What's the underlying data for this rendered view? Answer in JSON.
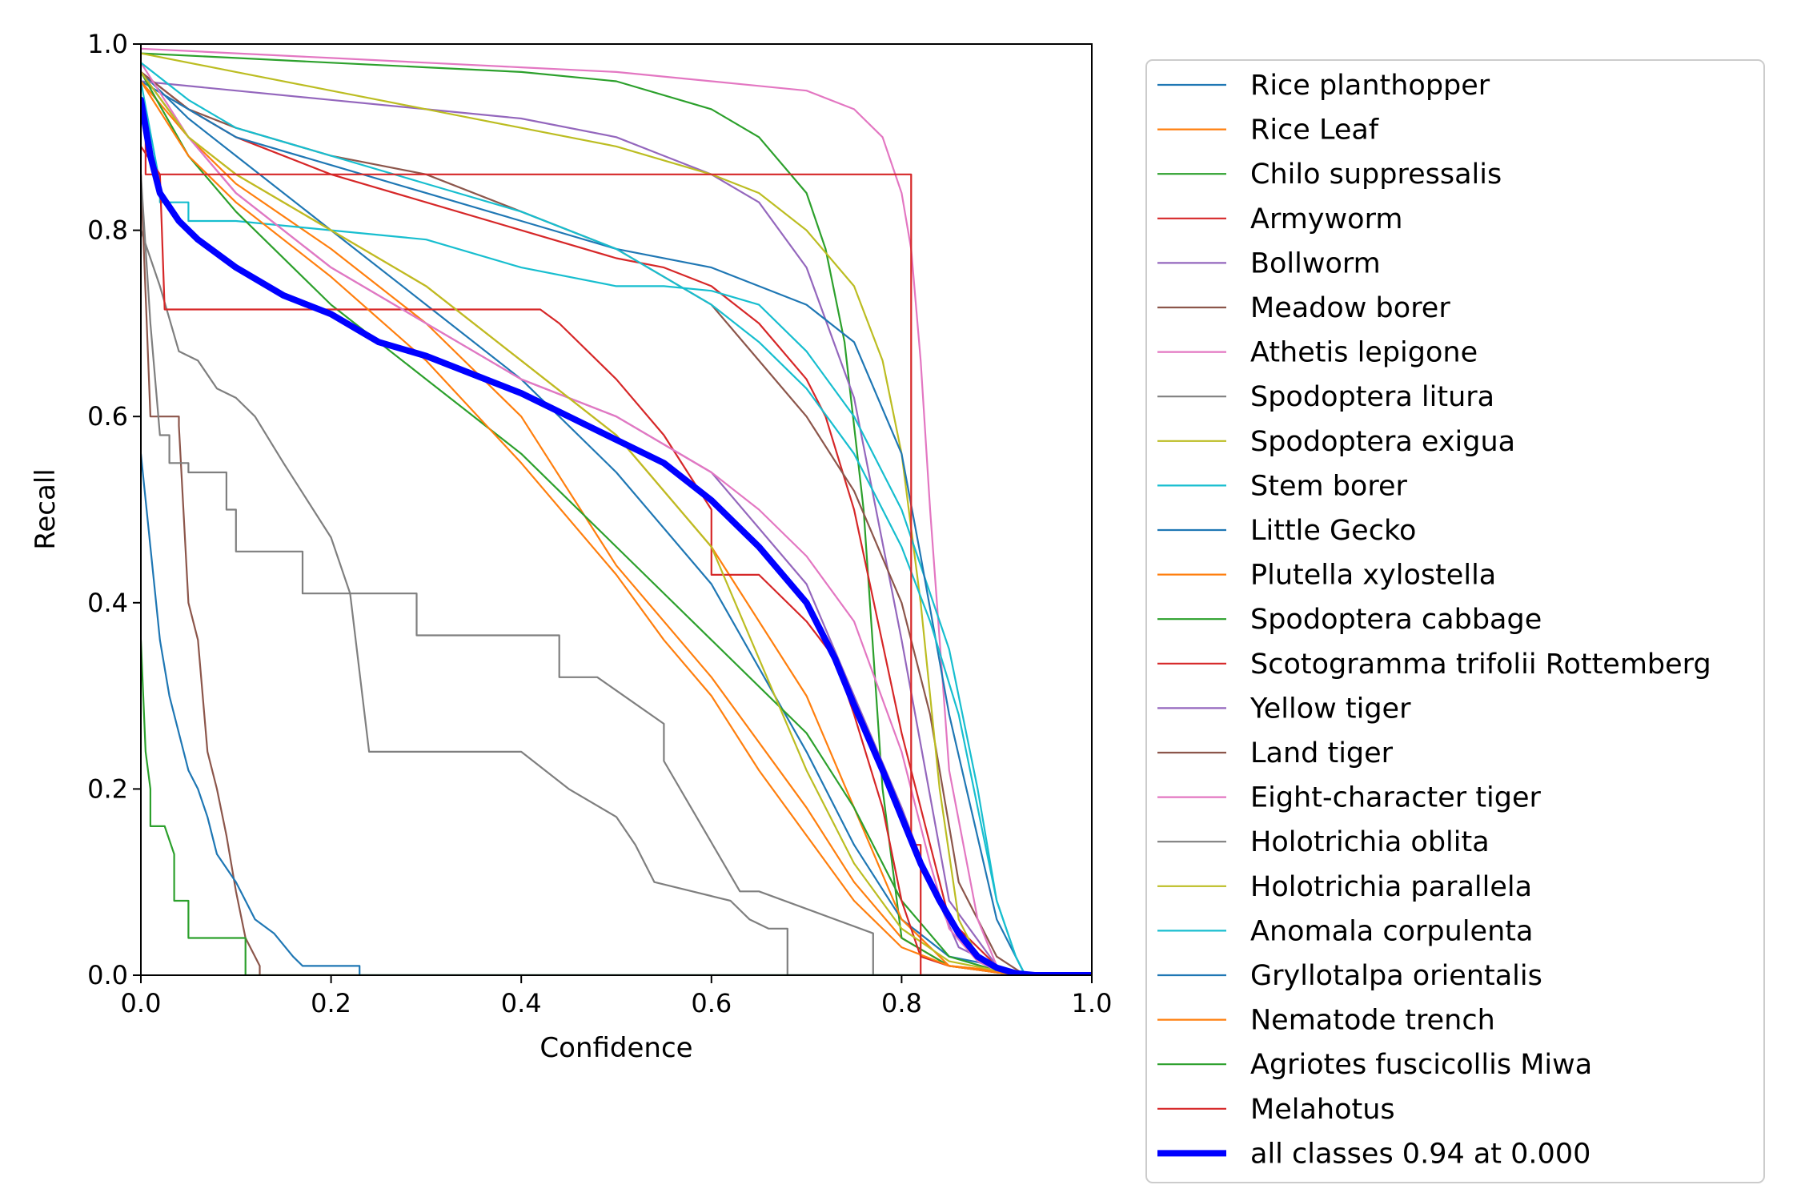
{
  "chart_data": {
    "type": "line",
    "title": "",
    "xlabel": "Confidence",
    "ylabel": "Recall",
    "xlim": [
      0,
      1
    ],
    "ylim": [
      0,
      1
    ],
    "xticks": [
      "0.0",
      "0.2",
      "0.4",
      "0.6",
      "0.8",
      "1.0"
    ],
    "yticks": [
      "0.0",
      "0.2",
      "0.4",
      "0.6",
      "0.8",
      "1.0"
    ],
    "grid": false,
    "legend_position": "outside-right",
    "series": [
      {
        "name": "Rice planthopper",
        "color": "#1f77b4",
        "x": [
          0,
          0.05,
          0.1,
          0.2,
          0.3,
          0.4,
          0.5,
          0.6,
          0.7,
          0.75,
          0.8,
          0.85,
          0.9,
          0.93,
          1.0
        ],
        "y": [
          0.97,
          0.92,
          0.88,
          0.8,
          0.72,
          0.64,
          0.54,
          0.42,
          0.24,
          0.14,
          0.06,
          0.02,
          0.01,
          0,
          0
        ]
      },
      {
        "name": "Rice Leaf",
        "color": "#ff7f0e",
        "x": [
          0,
          0.05,
          0.1,
          0.2,
          0.3,
          0.4,
          0.5,
          0.6,
          0.7,
          0.75,
          0.8,
          0.85,
          0.9,
          0.93,
          1.0
        ],
        "y": [
          0.97,
          0.9,
          0.85,
          0.78,
          0.7,
          0.6,
          0.44,
          0.32,
          0.18,
          0.1,
          0.04,
          0.01,
          0.005,
          0,
          0
        ]
      },
      {
        "name": "Chilo suppressalis",
        "color": "#2ca02c",
        "x": [
          0,
          0.1,
          0.2,
          0.3,
          0.4,
          0.5,
          0.6,
          0.65,
          0.7,
          0.72,
          0.74,
          0.76,
          0.78,
          0.8,
          0.85,
          0.9,
          0.93,
          1.0
        ],
        "y": [
          0.99,
          0.985,
          0.98,
          0.975,
          0.97,
          0.96,
          0.93,
          0.9,
          0.84,
          0.78,
          0.68,
          0.5,
          0.2,
          0.04,
          0.01,
          0.003,
          0,
          0
        ]
      },
      {
        "name": "Armyworm",
        "color": "#d62728",
        "x": [
          0,
          0.05,
          0.1,
          0.2,
          0.3,
          0.4,
          0.5,
          0.55,
          0.6,
          0.65,
          0.7,
          0.72,
          0.75,
          0.8,
          0.85,
          0.9,
          0.93,
          1.0
        ],
        "y": [
          0.97,
          0.93,
          0.9,
          0.86,
          0.83,
          0.8,
          0.77,
          0.76,
          0.74,
          0.7,
          0.64,
          0.6,
          0.5,
          0.26,
          0.06,
          0.01,
          0,
          0
        ]
      },
      {
        "name": "Bollworm",
        "color": "#9467bd",
        "x": [
          0,
          0.1,
          0.2,
          0.3,
          0.4,
          0.5,
          0.55,
          0.6,
          0.65,
          0.7,
          0.75,
          0.8,
          0.85,
          0.9,
          0.93,
          1.0
        ],
        "y": [
          0.96,
          0.95,
          0.94,
          0.93,
          0.92,
          0.9,
          0.88,
          0.86,
          0.83,
          0.76,
          0.62,
          0.36,
          0.08,
          0.01,
          0,
          0
        ]
      },
      {
        "name": "Meadow borer",
        "color": "#8c564b",
        "x": [
          0,
          0.05,
          0.1,
          0.2,
          0.3,
          0.4,
          0.5,
          0.6,
          0.65,
          0.7,
          0.75,
          0.8,
          0.83,
          0.86,
          0.9,
          0.93,
          1.0
        ],
        "y": [
          0.97,
          0.93,
          0.91,
          0.88,
          0.86,
          0.82,
          0.78,
          0.72,
          0.66,
          0.6,
          0.52,
          0.4,
          0.28,
          0.1,
          0.02,
          0,
          0
        ]
      },
      {
        "name": "Athetis lepigone",
        "color": "#e377c2",
        "x": [
          0,
          0.1,
          0.2,
          0.3,
          0.4,
          0.5,
          0.6,
          0.65,
          0.7,
          0.75,
          0.78,
          0.8,
          0.81,
          0.82,
          0.83,
          0.85,
          0.88,
          0.9,
          0.93,
          1.0
        ],
        "y": [
          0.995,
          0.99,
          0.985,
          0.98,
          0.975,
          0.97,
          0.96,
          0.955,
          0.95,
          0.93,
          0.9,
          0.84,
          0.78,
          0.66,
          0.5,
          0.22,
          0.06,
          0.01,
          0,
          0
        ]
      },
      {
        "name": "Spodoptera litura",
        "color": "#7f7f7f",
        "x": [
          0,
          0.02,
          0.04,
          0.06,
          0.08,
          0.1,
          0.12,
          0.15,
          0.2,
          0.22,
          0.24,
          0.3,
          0.4,
          0.45,
          0.5,
          0.52,
          0.54,
          0.58,
          0.62,
          0.64,
          0.66,
          0.68,
          0.68,
          1.0
        ],
        "y": [
          0.8,
          0.74,
          0.67,
          0.66,
          0.63,
          0.62,
          0.6,
          0.55,
          0.47,
          0.41,
          0.24,
          0.24,
          0.24,
          0.2,
          0.17,
          0.14,
          0.1,
          0.09,
          0.08,
          0.06,
          0.05,
          0.05,
          0,
          0
        ]
      },
      {
        "name": "Spodoptera exigua",
        "color": "#bcbd22",
        "x": [
          0,
          0.1,
          0.2,
          0.3,
          0.4,
          0.5,
          0.6,
          0.65,
          0.7,
          0.75,
          0.78,
          0.8,
          0.82,
          0.84,
          0.86,
          0.88,
          0.9,
          0.93,
          1.0
        ],
        "y": [
          0.99,
          0.97,
          0.95,
          0.93,
          0.91,
          0.89,
          0.86,
          0.84,
          0.8,
          0.74,
          0.66,
          0.56,
          0.4,
          0.2,
          0.06,
          0.02,
          0.01,
          0,
          0
        ]
      },
      {
        "name": "Stem borer",
        "color": "#17becf",
        "x": [
          0,
          0.02,
          0.02,
          0.05,
          0.05,
          0.1,
          0.2,
          0.3,
          0.4,
          0.5,
          0.55,
          0.6,
          0.65,
          0.7,
          0.75,
          0.8,
          0.85,
          0.88,
          0.9,
          0.92,
          0.93,
          1.0
        ],
        "y": [
          0.96,
          0.85,
          0.83,
          0.83,
          0.81,
          0.81,
          0.8,
          0.79,
          0.76,
          0.74,
          0.74,
          0.735,
          0.72,
          0.67,
          0.6,
          0.5,
          0.35,
          0.2,
          0.08,
          0.02,
          0,
          0
        ]
      },
      {
        "name": "Little Gecko",
        "color": "#1f77b4",
        "x": [
          0,
          0.05,
          0.1,
          0.2,
          0.3,
          0.4,
          0.5,
          0.6,
          0.65,
          0.7,
          0.75,
          0.8,
          0.82,
          0.85,
          0.9,
          0.93,
          1.0
        ],
        "y": [
          0.96,
          0.93,
          0.9,
          0.87,
          0.84,
          0.81,
          0.78,
          0.76,
          0.74,
          0.72,
          0.68,
          0.56,
          0.45,
          0.28,
          0.06,
          0,
          0
        ]
      },
      {
        "name": "Plutella xylostella",
        "color": "#ff7f0e",
        "x": [
          0,
          0.05,
          0.1,
          0.2,
          0.3,
          0.4,
          0.5,
          0.6,
          0.7,
          0.75,
          0.8,
          0.85,
          0.9,
          0.93,
          1.0
        ],
        "y": [
          0.96,
          0.9,
          0.86,
          0.8,
          0.74,
          0.66,
          0.58,
          0.46,
          0.3,
          0.18,
          0.06,
          0.01,
          0.005,
          0,
          0
        ]
      },
      {
        "name": "Spodoptera cabbage",
        "color": "#2ca02c",
        "x": [
          0,
          0.05,
          0.1,
          0.2,
          0.3,
          0.4,
          0.5,
          0.6,
          0.7,
          0.75,
          0.8,
          0.85,
          0.9,
          0.93,
          1.0
        ],
        "y": [
          0.97,
          0.88,
          0.82,
          0.72,
          0.64,
          0.56,
          0.46,
          0.36,
          0.26,
          0.18,
          0.08,
          0.02,
          0.005,
          0,
          0
        ]
      },
      {
        "name": "Scotogramma trifolii Rottemberg",
        "color": "#d62728",
        "x": [
          0,
          0.02,
          0.025,
          0.1,
          0.2,
          0.3,
          0.42,
          0.44,
          0.5,
          0.55,
          0.6,
          0.6,
          0.65,
          0.7,
          0.73,
          0.75,
          0.78,
          0.8,
          0.82,
          0.85,
          0.9,
          0.93,
          1.0
        ],
        "y": [
          0.89,
          0.86,
          0.715,
          0.715,
          0.715,
          0.715,
          0.715,
          0.7,
          0.64,
          0.58,
          0.5,
          0.43,
          0.43,
          0.38,
          0.34,
          0.28,
          0.18,
          0.08,
          0.02,
          0.01,
          0.003,
          0,
          0
        ]
      },
      {
        "name": "Yellow tiger",
        "color": "#9467bd",
        "x": [
          0,
          0.05,
          0.1,
          0.2,
          0.3,
          0.4,
          0.5,
          0.6,
          0.7,
          0.75,
          0.8,
          0.83,
          0.86,
          0.9,
          0.93,
          1.0
        ],
        "y": [
          0.97,
          0.9,
          0.84,
          0.76,
          0.7,
          0.64,
          0.6,
          0.54,
          0.42,
          0.3,
          0.18,
          0.1,
          0.03,
          0.01,
          0,
          0
        ]
      },
      {
        "name": "Land tiger",
        "color": "#8c564b",
        "x": [
          0,
          0.01,
          0.02,
          0.04,
          0.04,
          0.05,
          0.05,
          0.06,
          0.07,
          0.08,
          0.09,
          0.1,
          0.11,
          0.12,
          0.125,
          0.125,
          1.0
        ],
        "y": [
          0.86,
          0.6,
          0.6,
          0.6,
          0.59,
          0.4,
          0.4,
          0.36,
          0.24,
          0.2,
          0.15,
          0.09,
          0.04,
          0.02,
          0.01,
          0,
          0
        ]
      },
      {
        "name": "Eight-character tiger",
        "color": "#e377c2",
        "x": [
          0,
          0.05,
          0.1,
          0.2,
          0.3,
          0.4,
          0.5,
          0.6,
          0.65,
          0.7,
          0.75,
          0.8,
          0.83,
          0.85,
          0.88,
          0.9,
          0.93,
          1.0
        ],
        "y": [
          0.98,
          0.9,
          0.84,
          0.76,
          0.7,
          0.64,
          0.6,
          0.54,
          0.5,
          0.45,
          0.38,
          0.24,
          0.12,
          0.05,
          0.015,
          0.005,
          0,
          0
        ]
      },
      {
        "name": "Holotrichia oblita",
        "color": "#7f7f7f",
        "x": [
          0,
          0.01,
          0.02,
          0.03,
          0.03,
          0.05,
          0.05,
          0.09,
          0.09,
          0.1,
          0.1,
          0.12,
          0.12,
          0.17,
          0.17,
          0.25,
          0.25,
          0.29,
          0.29,
          0.44,
          0.44,
          0.48,
          0.48,
          0.55,
          0.55,
          0.63,
          0.65,
          0.77,
          0.77,
          1.0
        ],
        "y": [
          0.86,
          0.7,
          0.58,
          0.58,
          0.55,
          0.55,
          0.54,
          0.54,
          0.5,
          0.5,
          0.455,
          0.455,
          0.455,
          0.455,
          0.41,
          0.41,
          0.41,
          0.41,
          0.365,
          0.365,
          0.32,
          0.32,
          0.32,
          0.27,
          0.23,
          0.09,
          0.09,
          0.045,
          0,
          0
        ]
      },
      {
        "name": "Holotrichia parallela",
        "color": "#bcbd22",
        "x": [
          0,
          0.05,
          0.1,
          0.2,
          0.3,
          0.4,
          0.5,
          0.6,
          0.65,
          0.7,
          0.75,
          0.8,
          0.85,
          0.9,
          0.93,
          1.0
        ],
        "y": [
          0.97,
          0.9,
          0.86,
          0.8,
          0.74,
          0.66,
          0.58,
          0.46,
          0.34,
          0.22,
          0.12,
          0.05,
          0.015,
          0.005,
          0,
          0
        ]
      },
      {
        "name": "Anomala corpulenta",
        "color": "#17becf",
        "x": [
          0,
          0.05,
          0.1,
          0.2,
          0.3,
          0.4,
          0.5,
          0.6,
          0.65,
          0.7,
          0.75,
          0.8,
          0.83,
          0.86,
          0.88,
          0.9,
          0.92,
          0.93,
          1.0
        ],
        "y": [
          0.98,
          0.94,
          0.91,
          0.88,
          0.85,
          0.82,
          0.78,
          0.72,
          0.68,
          0.63,
          0.56,
          0.46,
          0.38,
          0.28,
          0.18,
          0.08,
          0.02,
          0,
          0
        ]
      },
      {
        "name": "Gryllotalpa orientalis",
        "color": "#1f77b4",
        "x": [
          0,
          0.01,
          0.02,
          0.03,
          0.04,
          0.05,
          0.06,
          0.07,
          0.08,
          0.1,
          0.12,
          0.14,
          0.16,
          0.17,
          0.2,
          0.23,
          0.23,
          1.0
        ],
        "y": [
          0.56,
          0.46,
          0.36,
          0.3,
          0.26,
          0.22,
          0.2,
          0.17,
          0.13,
          0.1,
          0.06,
          0.045,
          0.02,
          0.01,
          0.01,
          0.01,
          0,
          0
        ]
      },
      {
        "name": "Nematode trench",
        "color": "#ff7f0e",
        "x": [
          0,
          0.05,
          0.1,
          0.2,
          0.3,
          0.4,
          0.5,
          0.55,
          0.6,
          0.65,
          0.7,
          0.75,
          0.8,
          0.85,
          0.9,
          0.93,
          1.0
        ],
        "y": [
          0.96,
          0.88,
          0.83,
          0.75,
          0.66,
          0.55,
          0.43,
          0.36,
          0.3,
          0.22,
          0.15,
          0.08,
          0.03,
          0.01,
          0.003,
          0,
          0
        ]
      },
      {
        "name": "Agriotes fuscicollis Miwa",
        "color": "#2ca02c",
        "x": [
          0,
          0.005,
          0.01,
          0.01,
          0.025,
          0.035,
          0.035,
          0.05,
          0.05,
          0.08,
          0.09,
          0.11,
          0.11,
          1.0
        ],
        "y": [
          0.36,
          0.24,
          0.2,
          0.16,
          0.16,
          0.13,
          0.08,
          0.08,
          0.04,
          0.04,
          0.04,
          0.04,
          0,
          0
        ]
      },
      {
        "name": "Melahotus",
        "color": "#d62728",
        "x": [
          0,
          0.005,
          0.005,
          0.81,
          0.81,
          0.82,
          0.82,
          1.0
        ],
        "y": [
          0.94,
          0.9,
          0.86,
          0.86,
          0.14,
          0.14,
          0,
          0
        ]
      }
    ],
    "summary_series": {
      "name": "all classes 0.94 at 0.000",
      "color": "#0000ff",
      "x": [
        0,
        0.01,
        0.02,
        0.04,
        0.06,
        0.1,
        0.15,
        0.2,
        0.25,
        0.3,
        0.35,
        0.4,
        0.45,
        0.5,
        0.55,
        0.6,
        0.65,
        0.7,
        0.73,
        0.75,
        0.78,
        0.8,
        0.82,
        0.84,
        0.86,
        0.88,
        0.9,
        0.92,
        0.94,
        1.0
      ],
      "y": [
        0.94,
        0.88,
        0.84,
        0.81,
        0.79,
        0.76,
        0.73,
        0.71,
        0.68,
        0.665,
        0.645,
        0.625,
        0.6,
        0.575,
        0.55,
        0.51,
        0.46,
        0.4,
        0.34,
        0.29,
        0.22,
        0.17,
        0.12,
        0.08,
        0.045,
        0.02,
        0.008,
        0.002,
        0,
        0
      ]
    }
  }
}
